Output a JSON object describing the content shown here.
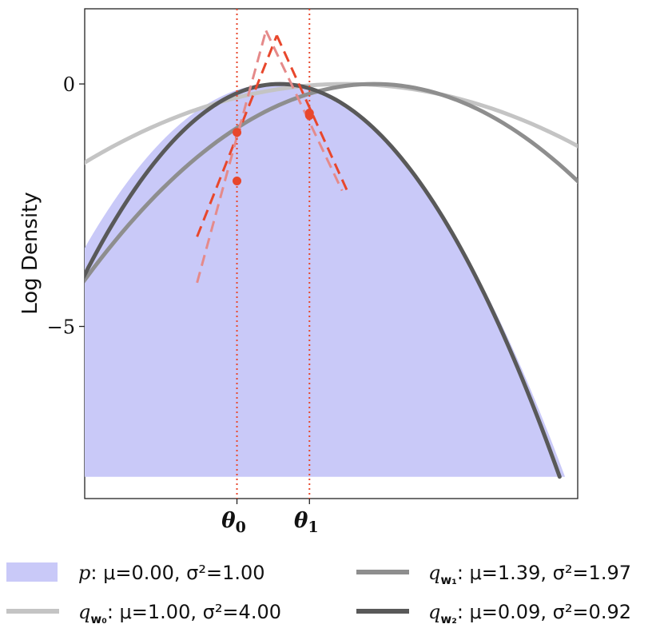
{
  "chart_data": {
    "type": "line",
    "ylabel": "Log Density",
    "xlim": [
      -2.6,
      4.2
    ],
    "ylim": [
      -8.55,
      1.55
    ],
    "yticks": [
      {
        "value": 0,
        "label": "0"
      },
      {
        "value": -5,
        "label": "−5"
      }
    ],
    "xticks": [
      {
        "value": -0.5,
        "label": "θ",
        "sub": "0"
      },
      {
        "value": 0.5,
        "label": "θ",
        "sub": "1"
      }
    ],
    "curve_floor": -8.1,
    "grid": false,
    "legend_position": "bottom",
    "target": {
      "name": "p",
      "mu": 0.0,
      "sigma2": 1.0,
      "color": "#c9c9f8",
      "legend_text": ":   μ=0.00, σ²=1.00"
    },
    "series": [
      {
        "name": "q",
        "sub": "w₀",
        "mu": 1.0,
        "sigma2": 4.0,
        "color": "#c4c4c4",
        "legend_text": ":  μ=1.00, σ²=4.00"
      },
      {
        "name": "q",
        "sub": "w₁",
        "mu": 1.39,
        "sigma2": 1.97,
        "color": "#8e8e8e",
        "legend_text": ":  μ=1.39, σ²=1.97"
      },
      {
        "name": "q",
        "sub": "w₂",
        "mu": 0.09,
        "sigma2": 0.92,
        "color": "#595959",
        "legend_text": ":  μ=0.09, σ²=0.92"
      }
    ],
    "tangent_points": [
      {
        "x": -0.5,
        "y": -1.0
      },
      {
        "x": -0.5,
        "y": -2.0
      },
      {
        "x": 0.5,
        "y": -0.6
      },
      {
        "x": 0.5,
        "y": -0.65
      }
    ],
    "tangent_lines": [
      {
        "x": [
          -1.05,
          0.05
        ],
        "y": [
          -3.15,
          1.0
        ],
        "color": "#e8472c"
      },
      {
        "x": [
          0.05,
          1.05
        ],
        "y": [
          1.0,
          -2.3
        ],
        "color": "#e8472c"
      },
      {
        "x": [
          -1.05,
          -0.1
        ],
        "y": [
          -4.1,
          1.1
        ],
        "color": "#e58a8a"
      },
      {
        "x": [
          -0.1,
          0.95
        ],
        "y": [
          1.1,
          -2.2
        ],
        "color": "#e58a8a"
      }
    ],
    "vlines": [
      -0.5,
      0.5
    ],
    "vline_color": "#e8472c",
    "point_color": "#e8472c"
  }
}
